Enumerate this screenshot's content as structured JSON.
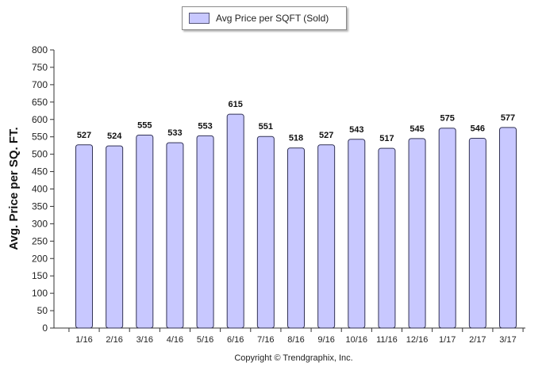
{
  "chart_data": {
    "type": "bar",
    "categories": [
      "1/16",
      "2/16",
      "3/16",
      "4/16",
      "5/16",
      "6/16",
      "7/16",
      "8/16",
      "9/16",
      "10/16",
      "11/16",
      "12/16",
      "1/17",
      "2/17",
      "3/17"
    ],
    "series": [
      {
        "name": "Avg Price per SQFT (Sold)",
        "values": [
          527,
          524,
          555,
          533,
          553,
          615,
          551,
          518,
          527,
          543,
          517,
          545,
          575,
          546,
          577
        ]
      }
    ],
    "ylabel": "Avg. Price per SQ. FT.",
    "xlabel": "",
    "ylim": [
      0,
      800
    ],
    "ytick_step": 50,
    "grid": false,
    "legend": "top-center",
    "bar_color": "#c8c8ff",
    "bar_edge_color": "#333355"
  },
  "footer": {
    "copyright": "Copyright © Trendgraphix, Inc."
  }
}
